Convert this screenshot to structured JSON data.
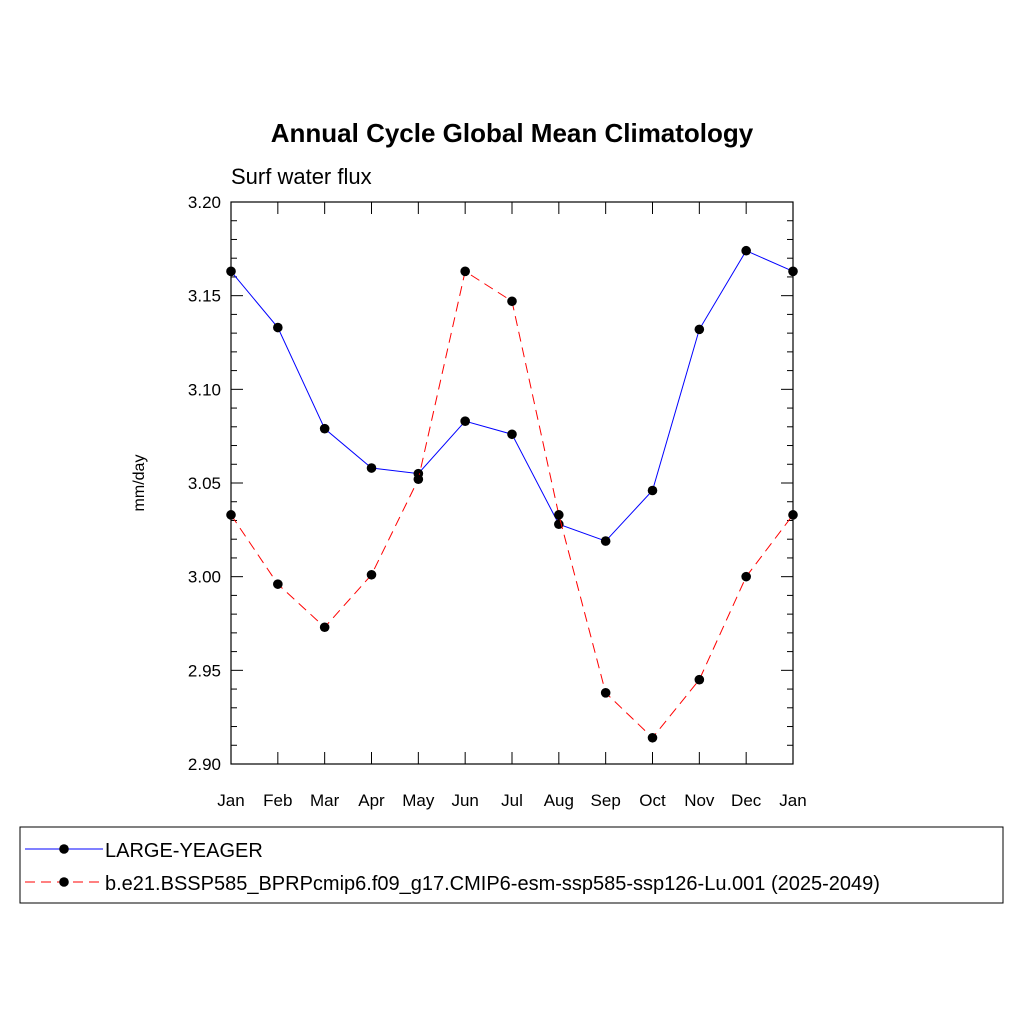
{
  "chart_data": {
    "type": "line",
    "title": "Annual Cycle Global Mean Climatology",
    "subtitle": "Surf water flux",
    "xlabel": "",
    "ylabel": "mm/day",
    "ylim": [
      2.9,
      3.2
    ],
    "yticks": [
      "2.90",
      "2.95",
      "3.00",
      "3.05",
      "3.10",
      "3.15",
      "3.20"
    ],
    "categories": [
      "Jan",
      "Feb",
      "Mar",
      "Apr",
      "May",
      "Jun",
      "Jul",
      "Aug",
      "Sep",
      "Oct",
      "Nov",
      "Dec",
      "Jan"
    ],
    "grid": false,
    "legend_position": "bottom",
    "series": [
      {
        "name": "LARGE-YEAGER",
        "color": "#0000ff",
        "dashed": false,
        "values": [
          3.163,
          3.133,
          3.079,
          3.058,
          3.055,
          3.083,
          3.076,
          3.028,
          3.019,
          3.046,
          3.132,
          3.174,
          3.163
        ]
      },
      {
        "name": "b.e21.BSSP585_BPRPcmip6.f09_g17.CMIP6-esm-ssp585-ssp126-Lu.001 (2025-2049)",
        "color": "#ff0000",
        "dashed": true,
        "values": [
          3.033,
          2.996,
          2.973,
          3.001,
          3.052,
          3.163,
          3.147,
          3.033,
          2.938,
          2.914,
          2.945,
          3.0,
          3.033
        ]
      }
    ]
  }
}
